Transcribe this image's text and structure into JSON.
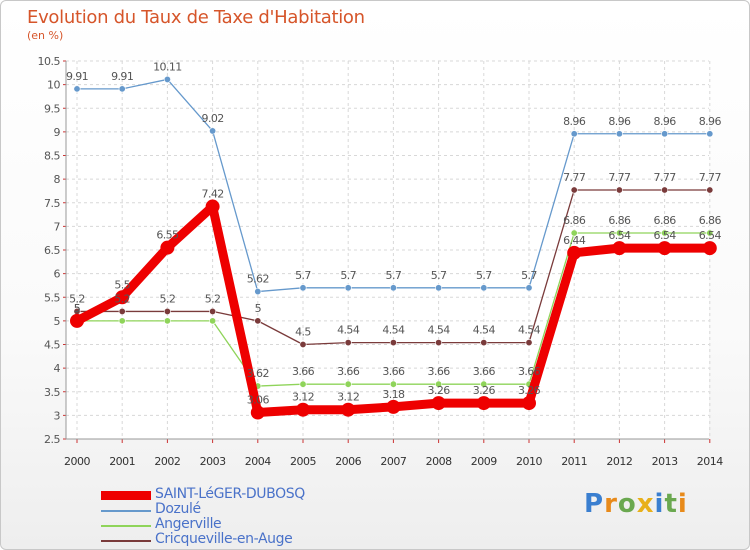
{
  "title": "Evolution du Taux de Taxe d'Habitation",
  "unit": "(en %)",
  "brand": "Proxiti",
  "chart_data": {
    "type": "line",
    "title": "Evolution du Taux de Taxe d'Habitation",
    "ylabel": "(en %)",
    "xlabel": "",
    "ylim": [
      2.5,
      10.5
    ],
    "yticks": [
      "2.5",
      "3",
      "3.5",
      "4",
      "4.5",
      "5",
      "5.5",
      "6",
      "6.5",
      "7",
      "7.5",
      "8",
      "8.5",
      "9",
      "9.5",
      "10",
      "10.5"
    ],
    "categories": [
      "2000",
      "2001",
      "2002",
      "2003",
      "2004",
      "2005",
      "2006",
      "2007",
      "2008",
      "2009",
      "2010",
      "2011",
      "2012",
      "2013",
      "2014"
    ],
    "grid": true,
    "legend": "bottom-left",
    "series": [
      {
        "name": "Cricqueville-en-Auge",
        "color": "#7a3b3b",
        "values": [
          5.2,
          5.2,
          5.2,
          5.2,
          5,
          4.5,
          4.54,
          4.54,
          4.54,
          4.54,
          4.54,
          7.77,
          7.77,
          7.77,
          7.77
        ],
        "labels": [
          "5.2",
          "5.2",
          "5.2",
          "5.2",
          "5",
          "4.5",
          "4.54",
          "4.54",
          "4.54",
          "4.54",
          "4.54",
          "7.77",
          "7.77",
          "7.77",
          "7.77"
        ]
      },
      {
        "name": "Angerville",
        "color": "#8fd45a",
        "values": [
          5,
          5,
          5,
          5,
          3.62,
          3.66,
          3.66,
          3.66,
          3.66,
          3.66,
          3.66,
          6.86,
          6.86,
          6.86,
          6.86
        ],
        "labels": [
          "5",
          "",
          "",
          "",
          "3.62",
          "3.66",
          "3.66",
          "3.66",
          "3.66",
          "3.66",
          "3.66",
          "6.86",
          "6.86",
          "6.86",
          "6.86"
        ]
      },
      {
        "name": "Dozulé",
        "color": "#6699cc",
        "values": [
          9.91,
          9.91,
          10.11,
          9.02,
          5.62,
          5.7,
          5.7,
          5.7,
          5.7,
          5.7,
          5.7,
          8.96,
          8.96,
          8.96,
          8.96
        ],
        "labels": [
          "9.91",
          "9.91",
          "10.11",
          "9.02",
          "5.62",
          "5.7",
          "5.7",
          "5.7",
          "5.7",
          "5.7",
          "5.7",
          "8.96",
          "8.96",
          "8.96",
          "8.96"
        ]
      },
      {
        "name": "SAINT-LéGER-DUBOSQ",
        "color": "#ee0000",
        "values": [
          5,
          5.5,
          6.55,
          7.42,
          3.06,
          3.12,
          3.12,
          3.18,
          3.26,
          3.26,
          3.26,
          6.44,
          6.54,
          6.54,
          6.54
        ],
        "labels": [
          "5",
          "5.5",
          "6.55",
          "7.42",
          "3.06",
          "3.12",
          "3.12",
          "3.18",
          "3.26",
          "3.26",
          "3.26",
          "6.44",
          "6.54",
          "6.54",
          "6.54"
        ]
      }
    ]
  },
  "legend": {
    "items": [
      {
        "label": "SAINT-LéGER-DUBOSQ",
        "color": "#ee0000",
        "thick": true
      },
      {
        "label": "Dozulé",
        "color": "#6699cc",
        "thick": false
      },
      {
        "label": "Angerville",
        "color": "#8fd45a",
        "thick": false
      },
      {
        "label": "Cricqueville-en-Auge",
        "color": "#7a3b3b",
        "thick": false
      }
    ]
  }
}
